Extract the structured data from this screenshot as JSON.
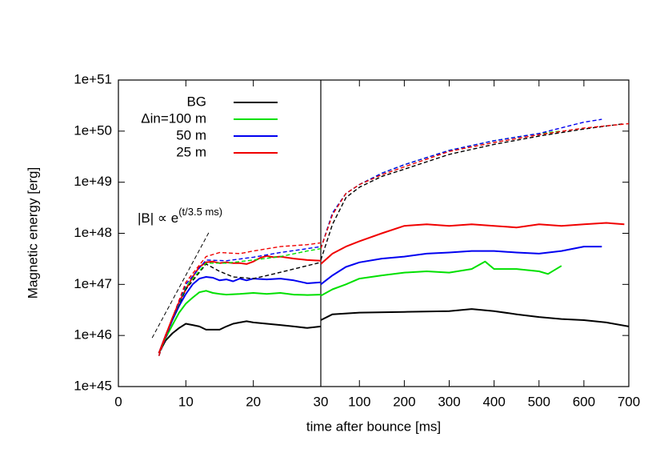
{
  "chart_data": [
    {
      "type": "line",
      "y_label": "Magnetic energy [erg]",
      "x_label": "time after bounce [ms]",
      "xlim": [
        0,
        30
      ],
      "xticks": [
        0,
        10,
        20,
        30
      ],
      "ylim": [
        1e+45,
        1e+51
      ],
      "ylog": true,
      "yticks": [
        {
          "value": 1e+45,
          "label": "1e+45"
        },
        {
          "value": 1e+46,
          "label": "1e+46"
        },
        {
          "value": 1e+47,
          "label": "1e+47"
        },
        {
          "value": 1e+48,
          "label": "1e+48"
        },
        {
          "value": 1e+49,
          "label": "1e+49"
        },
        {
          "value": 1e+50,
          "label": "1e+50"
        },
        {
          "value": 1e+51,
          "label": "1e+51"
        }
      ],
      "legend": "upper left",
      "annotation": {
        "text": "|B| ∝ e",
        "superscript": "(t/3.5 ms)",
        "color": "#000000",
        "x": [
          5.0,
          13.5
        ],
        "values": [
          9e+45,
          1.1e+48
        ]
      },
      "series": [
        {
          "name": "BG",
          "color": "#000000",
          "x": [
            6,
            7,
            8,
            9,
            10,
            11,
            12,
            13,
            14,
            15,
            16,
            17,
            18,
            19,
            20,
            22,
            24,
            26,
            28,
            30
          ],
          "values": [
            4.5e+45,
            8e+45,
            1.1e+46,
            1.4e+46,
            1.7e+46,
            1.6e+46,
            1.5e+46,
            1.3e+46,
            1.3e+46,
            1.3e+46,
            1.5e+46,
            1.7e+46,
            1.8e+46,
            1.9e+46,
            1.8e+46,
            1.7e+46,
            1.6e+46,
            1.5e+46,
            1.4e+46,
            1.5e+46
          ]
        },
        {
          "name": "Δin=100 m",
          "color": "#00e000",
          "x": [
            6,
            7,
            8,
            9,
            10,
            11,
            12,
            13,
            14,
            15,
            16,
            18,
            20,
            22,
            24,
            26,
            28,
            30
          ],
          "values": [
            4.5e+45,
            9e+45,
            1.6e+46,
            2.8e+46,
            4.2e+46,
            5.5e+46,
            7e+46,
            7.5e+46,
            6.8e+46,
            6.5e+46,
            6.3e+46,
            6.5e+46,
            6.8e+46,
            6.5e+46,
            6.8e+46,
            6.3e+46,
            6.2e+46,
            6.3e+46
          ]
        },
        {
          "name": "50 m",
          "color": "#0000f0",
          "x": [
            6,
            7,
            8,
            9,
            10,
            11,
            12,
            13,
            14,
            15,
            16,
            17,
            18,
            19,
            20,
            22,
            24,
            26,
            28,
            30
          ],
          "values": [
            4.5e+45,
            1e+46,
            2e+46,
            3.8e+46,
            6.5e+46,
            1e+47,
            1.3e+47,
            1.4e+47,
            1.35e+47,
            1.2e+47,
            1.25e+47,
            1.15e+47,
            1.3e+47,
            1.2e+47,
            1.3e+47,
            1.25e+47,
            1.3e+47,
            1.2e+47,
            1.05e+47,
            1.1e+47
          ]
        },
        {
          "name": "25 m",
          "color": "#f00000",
          "x": [
            6,
            7,
            8,
            9,
            10,
            11,
            12,
            13,
            14,
            15,
            16,
            17,
            18,
            19,
            20,
            21,
            22,
            23,
            24,
            26,
            28,
            30
          ],
          "values": [
            4.5e+45,
            1e+46,
            2.2e+46,
            4.5e+46,
            8e+46,
            1.4e+47,
            2.2e+47,
            2.7e+47,
            2.8e+47,
            2.6e+47,
            2.7e+47,
            2.6e+47,
            2.6e+47,
            2.5e+47,
            2.8e+47,
            3.3e+47,
            3.6e+47,
            3.4e+47,
            3.5e+47,
            3.2e+47,
            3e+47,
            2.9e+47
          ]
        },
        {
          "color": "#000000",
          "dash": true,
          "x": [
            6,
            8,
            10,
            13,
            15,
            17,
            20,
            23,
            26,
            30
          ],
          "values": [
            4e+45,
            2e+46,
            8e+46,
            2.5e+47,
            1.8e+47,
            1.4e+47,
            1.3e+47,
            1.6e+47,
            2e+47,
            2.7e+47
          ]
        },
        {
          "color": "#00e000",
          "dash": true,
          "x": [
            6,
            8,
            10,
            13,
            16,
            20,
            24,
            28,
            30
          ],
          "values": [
            4e+45,
            2e+46,
            9e+46,
            2.6e+47,
            2.6e+47,
            3e+47,
            3.5e+47,
            4.5e+47,
            5e+47
          ]
        },
        {
          "color": "#0000f0",
          "dash": true,
          "x": [
            6,
            8,
            10,
            13,
            16,
            20,
            24,
            28,
            30
          ],
          "values": [
            4e+45,
            2e+46,
            1e+47,
            3e+47,
            2.9e+47,
            3.4e+47,
            4.2e+47,
            5e+47,
            5.5e+47
          ]
        },
        {
          "color": "#f00000",
          "dash": true,
          "x": [
            6,
            8,
            10,
            13,
            15,
            18,
            20,
            24,
            28,
            30
          ],
          "values": [
            4e+45,
            2.2e+46,
            1.1e+47,
            3.5e+47,
            4.2e+47,
            4e+47,
            4.5e+47,
            5.5e+47,
            6e+47,
            6.5e+47
          ]
        }
      ]
    },
    {
      "type": "line",
      "xlim": [
        14,
        700
      ],
      "xticks": [
        100,
        200,
        300,
        400,
        500,
        600,
        700
      ],
      "ylim": [
        1e+45,
        1e+51
      ],
      "ylog": true,
      "series": [
        {
          "color": "#000000",
          "x": [
            14,
            40,
            100,
            200,
            300,
            350,
            400,
            450,
            500,
            550,
            600,
            650,
            700
          ],
          "values": [
            2e+46,
            2.6e+46,
            2.8e+46,
            2.9e+46,
            3e+46,
            3.3e+46,
            3e+46,
            2.6e+46,
            2.3e+46,
            2.1e+46,
            2e+46,
            1.8e+46,
            1.5e+46
          ]
        },
        {
          "color": "#00e000",
          "x": [
            14,
            40,
            70,
            100,
            150,
            200,
            250,
            300,
            350,
            380,
            400,
            450,
            500,
            520,
            550
          ],
          "values": [
            6e+46,
            8e+46,
            1e+47,
            1.3e+47,
            1.5e+47,
            1.7e+47,
            1.8e+47,
            1.7e+47,
            2e+47,
            2.8e+47,
            2e+47,
            2e+47,
            1.8e+47,
            1.6e+47,
            2.3e+47
          ]
        },
        {
          "color": "#0000f0",
          "x": [
            14,
            40,
            70,
            100,
            150,
            200,
            250,
            300,
            350,
            400,
            450,
            500,
            550,
            600,
            640
          ],
          "values": [
            1e+47,
            1.5e+47,
            2.2e+47,
            2.7e+47,
            3.2e+47,
            3.5e+47,
            4e+47,
            4.2e+47,
            4.5e+47,
            4.5e+47,
            4.2e+47,
            4e+47,
            4.5e+47,
            5.5e+47,
            5.5e+47
          ]
        },
        {
          "color": "#f00000",
          "x": [
            14,
            40,
            70,
            100,
            150,
            200,
            250,
            300,
            350,
            400,
            450,
            500,
            550,
            600,
            650,
            690
          ],
          "values": [
            2.5e+47,
            4e+47,
            5.5e+47,
            7e+47,
            1e+48,
            1.4e+48,
            1.5e+48,
            1.4e+48,
            1.5e+48,
            1.4e+48,
            1.3e+48,
            1.5e+48,
            1.4e+48,
            1.5e+48,
            1.6e+48,
            1.5e+48
          ]
        },
        {
          "color": "#000000",
          "dash": true,
          "x": [
            14,
            40,
            70,
            100,
            150,
            200,
            300,
            400,
            500,
            600,
            690
          ],
          "values": [
            3e+47,
            1.5e+48,
            5e+48,
            8e+48,
            1.3e+49,
            1.8e+49,
            3.5e+49,
            5.5e+49,
            8e+49,
            1.1e+50,
            1.4e+50
          ]
        },
        {
          "color": "#00e000",
          "dash": true,
          "x": [
            14,
            40,
            70,
            100,
            150,
            200,
            300,
            400,
            500,
            550
          ],
          "values": [
            5e+47,
            2.5e+48,
            6e+48,
            9e+48,
            1.5e+49,
            2.2e+49,
            4.2e+49,
            6.5e+49,
            9e+49,
            1e+50
          ]
        },
        {
          "color": "#0000f0",
          "dash": true,
          "x": [
            14,
            40,
            70,
            100,
            150,
            200,
            300,
            400,
            500,
            600,
            640
          ],
          "values": [
            5e+47,
            2.5e+48,
            6e+48,
            9e+48,
            1.5e+49,
            2.2e+49,
            4.2e+49,
            6.5e+49,
            9e+49,
            1.5e+50,
            1.7e+50
          ]
        },
        {
          "color": "#f00000",
          "dash": true,
          "x": [
            14,
            40,
            70,
            100,
            150,
            200,
            300,
            400,
            500,
            600,
            700
          ],
          "values": [
            5e+47,
            2.3e+48,
            6e+48,
            9e+48,
            1.4e+49,
            2e+49,
            4e+49,
            6e+49,
            8.5e+49,
            1.15e+50,
            1.4e+50
          ]
        }
      ]
    }
  ]
}
